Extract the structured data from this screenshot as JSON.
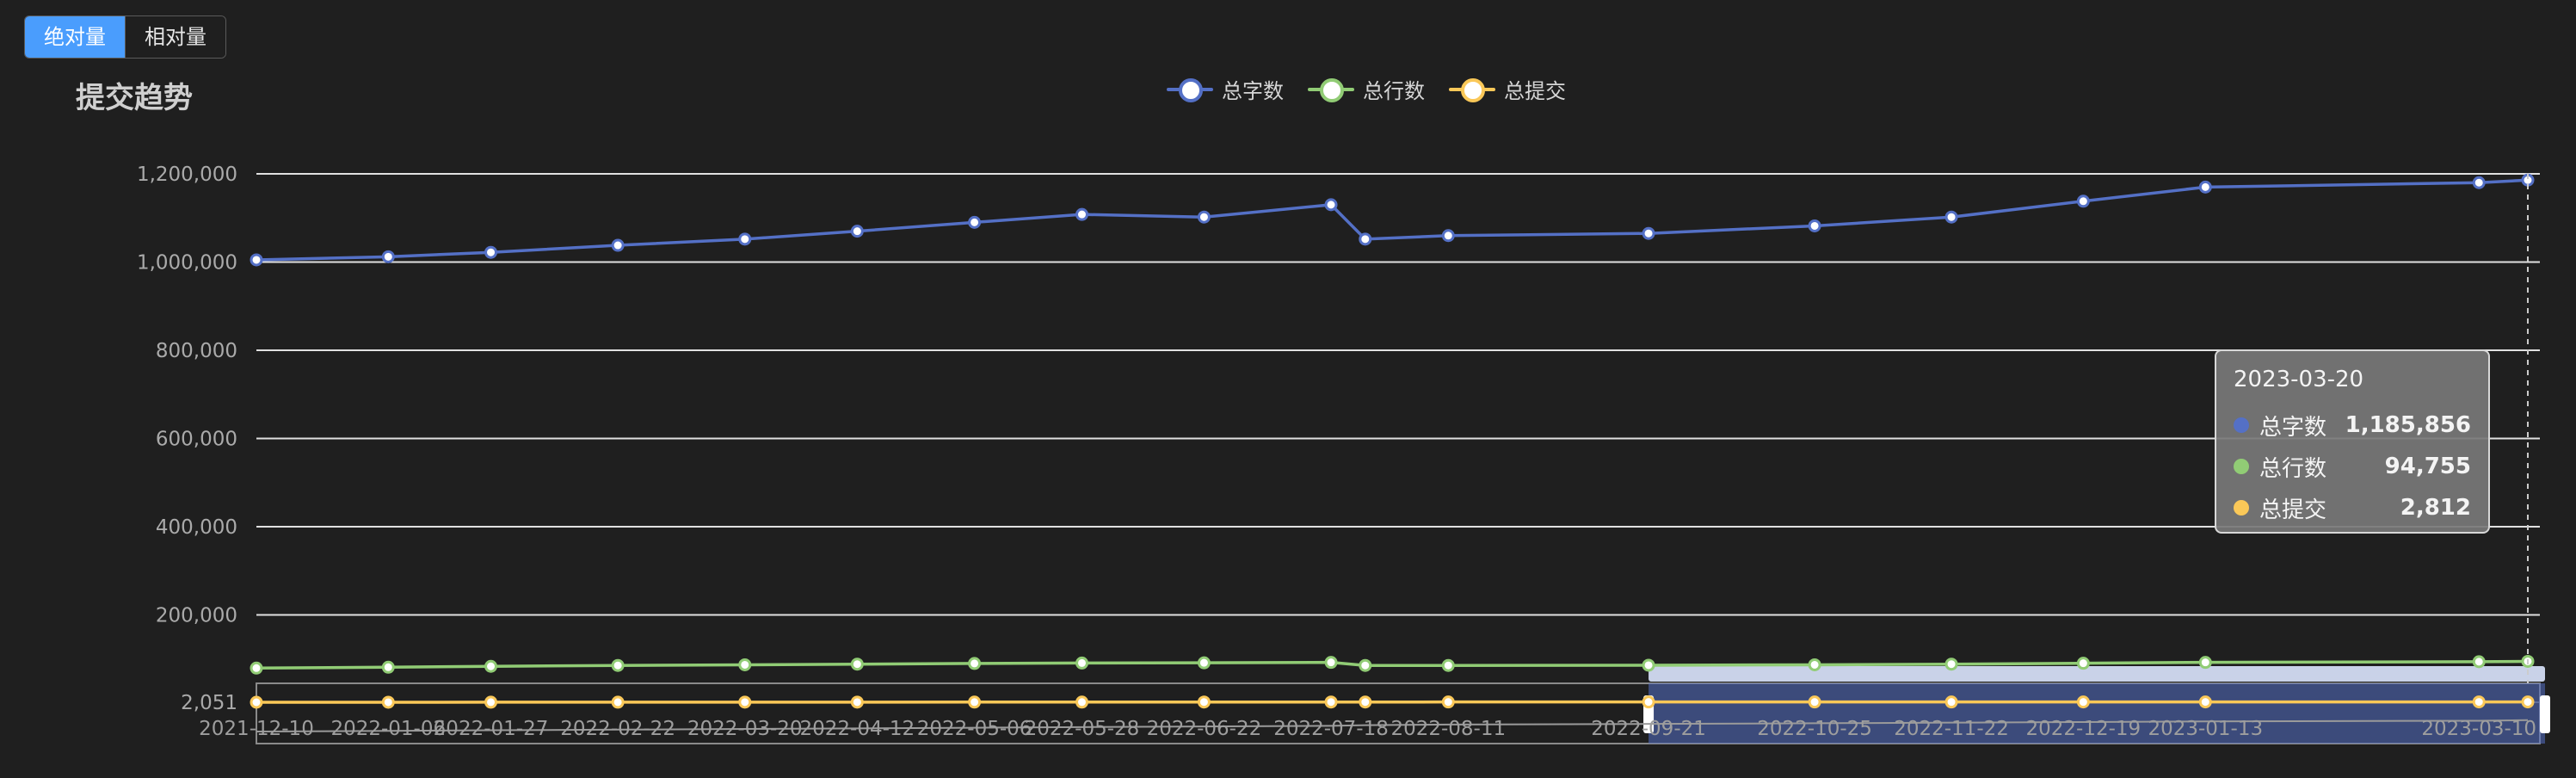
{
  "view_toggle": {
    "options": [
      {
        "label": "绝对量",
        "active": true
      },
      {
        "label": "相对量",
        "active": false
      }
    ]
  },
  "chart_data": {
    "type": "line",
    "title": "提交趋势",
    "ylim": [
      2051,
      1200000
    ],
    "y_ticks": [
      "1,200,000",
      "1,000,000",
      "800,000",
      "600,000",
      "400,000",
      "200,000",
      "2,051"
    ],
    "x_ticks": [
      "2021-12-10",
      "2022-01-06",
      "2022-01-27",
      "2022-02-22",
      "2022-03-20",
      "2022-04-12",
      "2022-05-06",
      "2022-05-28",
      "2022-06-22",
      "2022-07-18",
      "2022-08-11",
      "2022-09-21",
      "2022-10-25",
      "2022-11-22",
      "2022-12-19",
      "2023-01-13",
      "2023-03-10"
    ],
    "x": [
      "2021-12-10",
      "2022-01-06",
      "2022-01-27",
      "2022-02-22",
      "2022-03-20",
      "2022-04-12",
      "2022-05-06",
      "2022-05-28",
      "2022-06-22",
      "2022-07-18",
      "2022-07-25",
      "2022-08-11",
      "2022-09-21",
      "2022-10-25",
      "2022-11-22",
      "2022-12-19",
      "2023-01-13",
      "2023-03-10",
      "2023-03-20"
    ],
    "series": [
      {
        "name": "总字数",
        "color": "#5470c6",
        "values": [
          1005000,
          1012000,
          1022000,
          1038000,
          1052000,
          1070000,
          1090000,
          1108000,
          1102000,
          1130000,
          1052000,
          1060000,
          1065000,
          1082000,
          1102000,
          1138000,
          1170000,
          1180000,
          1185856
        ]
      },
      {
        "name": "总行数",
        "color": "#91cc75",
        "values": [
          79500,
          81500,
          83500,
          85500,
          87000,
          88500,
          90000,
          91000,
          91500,
          92500,
          85500,
          85500,
          86000,
          87000,
          88500,
          90500,
          92500,
          94000,
          94755
        ]
      },
      {
        "name": "总提交",
        "color": "#fac858",
        "values": [
          2051,
          2100,
          2180,
          2250,
          2320,
          2390,
          2450,
          2510,
          2560,
          2610,
          2640,
          2670,
          2690,
          2720,
          2750,
          2770,
          2790,
          2805,
          2812
        ]
      }
    ],
    "legend_position": "top-center",
    "grid": true,
    "data_zoom": {
      "start_label": "2022-09-21",
      "end_label": "2023-03-20"
    }
  },
  "tooltip": {
    "date": "2023-03-20",
    "rows": [
      {
        "name": "总字数",
        "value": "1,185,856",
        "color": "#5470c6"
      },
      {
        "name": "总行数",
        "value": "94,755",
        "color": "#91cc75"
      },
      {
        "name": "总提交",
        "value": "2,812",
        "color": "#fac858"
      }
    ]
  }
}
